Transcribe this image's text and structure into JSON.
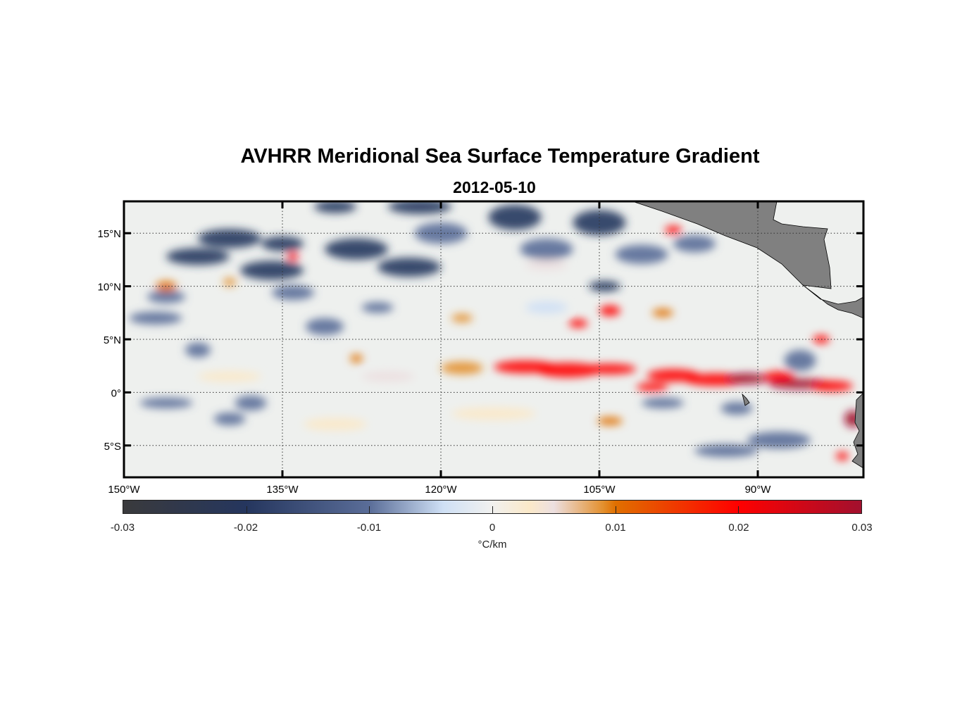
{
  "chart_data": {
    "type": "heatmap",
    "title": "AVHRR Meridional Sea Surface Temperature Gradient",
    "subtitle": "2012-05-10",
    "xlim": [
      -150,
      -80
    ],
    "ylim": [
      -8,
      18
    ],
    "x_ticks": [
      {
        "value": -150,
        "label": "150°W"
      },
      {
        "value": -135,
        "label": "135°W"
      },
      {
        "value": -120,
        "label": "120°W"
      },
      {
        "value": -105,
        "label": "105°W"
      },
      {
        "value": -90,
        "label": "90°W"
      }
    ],
    "y_ticks": [
      {
        "value": 15,
        "label": "15°N"
      },
      {
        "value": 10,
        "label": "10°N"
      },
      {
        "value": 5,
        "label": "5°N"
      },
      {
        "value": 0,
        "label": "0°"
      },
      {
        "value": -5,
        "label": "5°S"
      }
    ],
    "grid": "dotted",
    "colorbar": {
      "range": [
        -0.03,
        0.03
      ],
      "ticks": [
        "-0.03",
        "-0.02",
        "-0.01",
        "0",
        "0.01",
        "0.02",
        "0.03"
      ],
      "tick_values": [
        -0.03,
        -0.02,
        -0.01,
        0,
        0.01,
        0.02,
        0.03
      ],
      "label": "°C/km",
      "placement": "bottom"
    },
    "colors": {
      "land": "#808080",
      "ocean_neutral": "#eef0ee"
    }
  }
}
